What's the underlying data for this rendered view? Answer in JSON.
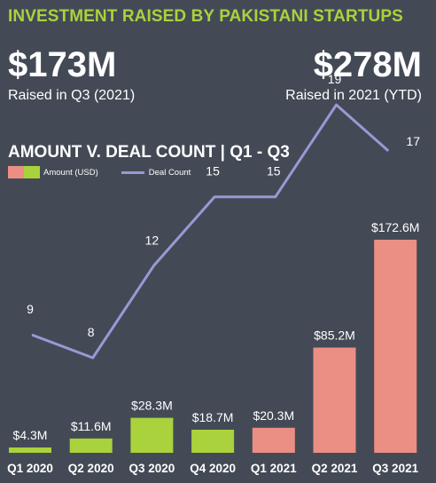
{
  "header": {
    "title": "INVESTMENT RAISED BY PAKISTANI STARTUPS",
    "stat_left_value": "$173M",
    "stat_left_caption": "Raised in Q3 (2021)",
    "stat_right_value": "$278M",
    "stat_right_caption": "Raised in 2021 (YTD)"
  },
  "colors": {
    "background": "#434a56",
    "title_accent": "#a9d23c",
    "bar_2020": "#a9d23c",
    "bar_2021": "#eb8f84",
    "line": "#9a98d4"
  },
  "chart_data": {
    "type": "bar",
    "title": "AMOUNT V. DEAL COUNT | Q1 - Q3",
    "legend_position": "top-left",
    "grid": false,
    "categories": [
      "Q1 2020",
      "Q2 2020",
      "Q3 2020",
      "Q4 2020",
      "Q1 2021",
      "Q2 2021",
      "Q3 2021"
    ],
    "series": [
      {
        "name": "Amount (USD)",
        "type": "bar",
        "values": [
          4.3,
          11.6,
          28.3,
          18.7,
          20.3,
          85.2,
          172.6
        ],
        "labels": [
          "$4.3M",
          "$11.6M",
          "$28.3M",
          "$18.7M",
          "$20.3M",
          "$85.2M",
          "$172.6M"
        ],
        "colors": [
          "#a9d23c",
          "#a9d23c",
          "#a9d23c",
          "#a9d23c",
          "#eb8f84",
          "#eb8f84",
          "#eb8f84"
        ]
      },
      {
        "name": "Deal Count",
        "type": "line",
        "values": [
          9,
          8,
          12,
          15,
          15,
          19,
          17
        ]
      }
    ]
  }
}
